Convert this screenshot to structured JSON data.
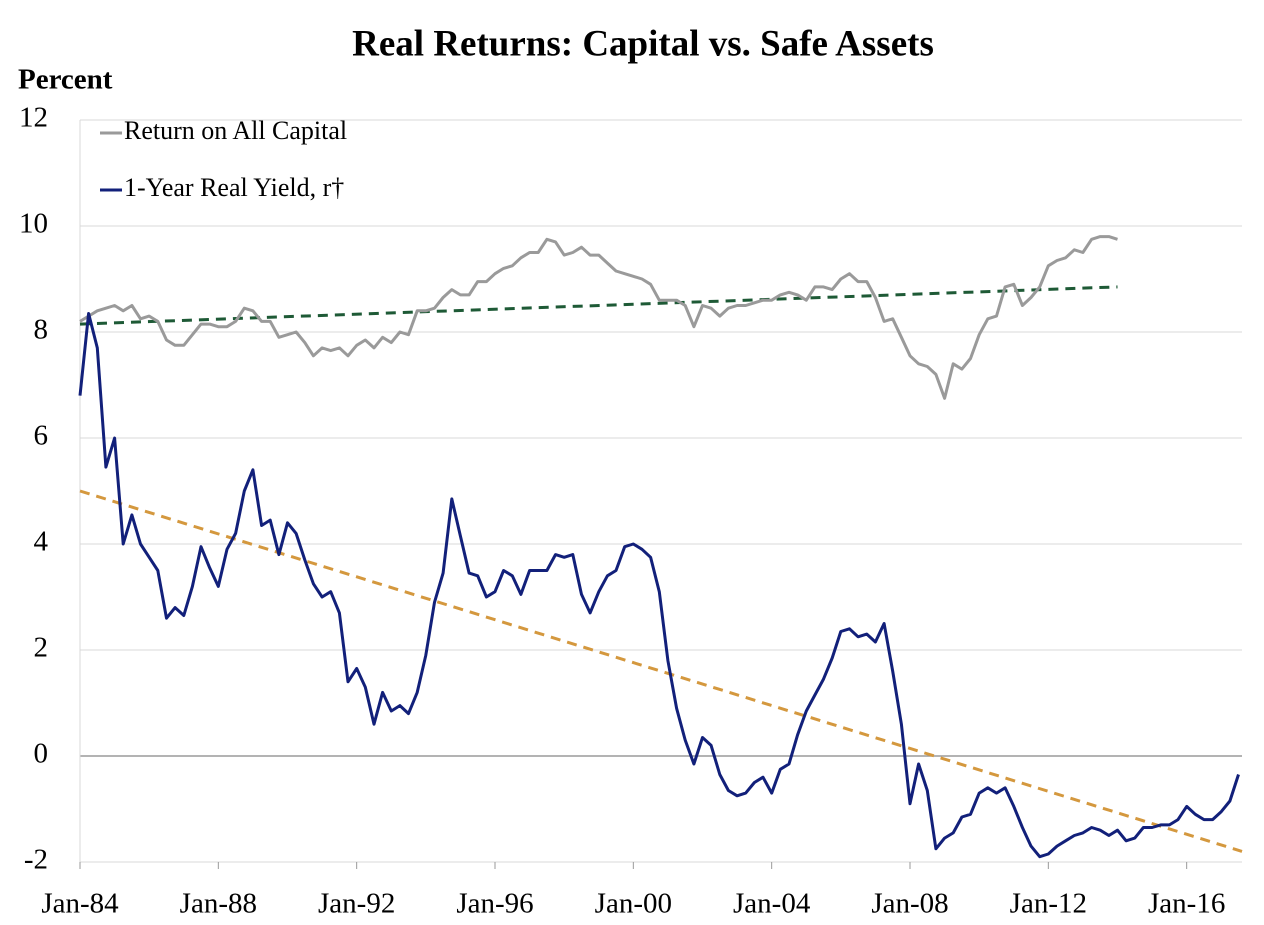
{
  "chart_data": {
    "type": "line",
    "title": "Real Returns: Capital vs. Safe Assets",
    "y_label": "Percent",
    "xlim": [
      1984,
      2017.6
    ],
    "xticks": [
      {
        "value": 1984,
        "label": "Jan-84"
      },
      {
        "value": 1988,
        "label": "Jan-88"
      },
      {
        "value": 1992,
        "label": "Jan-92"
      },
      {
        "value": 1996,
        "label": "Jan-96"
      },
      {
        "value": 2000,
        "label": "Jan-00"
      },
      {
        "value": 2004,
        "label": "Jan-04"
      },
      {
        "value": 2008,
        "label": "Jan-08"
      },
      {
        "value": 2012,
        "label": "Jan-12"
      },
      {
        "value": 2016,
        "label": "Jan-16"
      }
    ],
    "ylim": [
      -2,
      12
    ],
    "yticks": [
      -2,
      0,
      2,
      4,
      6,
      8,
      10,
      12
    ],
    "grid": true,
    "legend": "upper left",
    "series": [
      {
        "name": "Return on All Capital",
        "color": "#9a9a9a",
        "x": [
          1984,
          1984.25,
          1984.5,
          1984.75,
          1985,
          1985.25,
          1985.5,
          1985.75,
          1986,
          1986.25,
          1986.5,
          1986.75,
          1987,
          1987.25,
          1987.5,
          1987.75,
          1988,
          1988.25,
          1988.5,
          1988.75,
          1989,
          1989.25,
          1989.5,
          1989.75,
          1990,
          1990.25,
          1990.5,
          1990.75,
          1991,
          1991.25,
          1991.5,
          1991.75,
          1992,
          1992.25,
          1992.5,
          1992.75,
          1993,
          1993.25,
          1993.5,
          1993.75,
          1994,
          1994.25,
          1994.5,
          1994.75,
          1995,
          1995.25,
          1995.5,
          1995.75,
          1996,
          1996.25,
          1996.5,
          1996.75,
          1997,
          1997.25,
          1997.5,
          1997.75,
          1998,
          1998.25,
          1998.5,
          1998.75,
          1999,
          1999.25,
          1999.5,
          1999.75,
          2000,
          2000.25,
          2000.5,
          2000.75,
          2001,
          2001.25,
          2001.5,
          2001.75,
          2002,
          2002.25,
          2002.5,
          2002.75,
          2003,
          2003.25,
          2003.5,
          2003.75,
          2004,
          2004.25,
          2004.5,
          2004.75,
          2005,
          2005.25,
          2005.5,
          2005.75,
          2006,
          2006.25,
          2006.5,
          2006.75,
          2007,
          2007.25,
          2007.5,
          2007.75,
          2008,
          2008.25,
          2008.5,
          2008.75,
          2009,
          2009.25,
          2009.5,
          2009.75,
          2010,
          2010.25,
          2010.5,
          2010.75,
          2011,
          2011.25,
          2011.5,
          2011.75,
          2012,
          2012.25,
          2012.5,
          2012.75,
          2013,
          2013.25,
          2013.5,
          2013.75,
          2014
        ],
        "values": [
          8.2,
          8.3,
          8.4,
          8.45,
          8.5,
          8.4,
          8.5,
          8.25,
          8.3,
          8.2,
          7.85,
          7.75,
          7.75,
          7.95,
          8.15,
          8.15,
          8.1,
          8.1,
          8.2,
          8.45,
          8.4,
          8.2,
          8.2,
          7.9,
          7.95,
          8.0,
          7.8,
          7.55,
          7.7,
          7.65,
          7.7,
          7.55,
          7.75,
          7.85,
          7.7,
          7.9,
          7.8,
          8.0,
          7.95,
          8.4,
          8.4,
          8.45,
          8.65,
          8.8,
          8.7,
          8.7,
          8.95,
          8.95,
          9.1,
          9.2,
          9.25,
          9.4,
          9.5,
          9.5,
          9.75,
          9.7,
          9.45,
          9.5,
          9.6,
          9.45,
          9.45,
          9.3,
          9.15,
          9.1,
          9.05,
          9.0,
          8.9,
          8.6,
          8.6,
          8.6,
          8.5,
          8.1,
          8.5,
          8.45,
          8.3,
          8.45,
          8.5,
          8.5,
          8.55,
          8.6,
          8.6,
          8.7,
          8.75,
          8.7,
          8.6,
          8.85,
          8.85,
          8.8,
          9.0,
          9.1,
          8.95,
          8.95,
          8.65,
          8.2,
          8.25,
          7.9,
          7.55,
          7.4,
          7.35,
          7.2,
          6.75,
          7.4,
          7.3,
          7.5,
          7.95,
          8.25,
          8.3,
          8.85,
          8.9,
          8.5,
          8.65,
          8.85,
          9.25,
          9.35,
          9.4,
          9.55,
          9.5,
          9.75,
          9.8,
          9.8,
          9.75
        ]
      },
      {
        "name": "1-Year Real Yield, r†",
        "color": "#12207a",
        "x": [
          1984,
          1984.25,
          1984.5,
          1984.75,
          1985,
          1985.25,
          1985.5,
          1985.75,
          1986,
          1986.25,
          1986.5,
          1986.75,
          1987,
          1987.25,
          1987.5,
          1987.75,
          1988,
          1988.25,
          1988.5,
          1988.75,
          1989,
          1989.25,
          1989.5,
          1989.75,
          1990,
          1990.25,
          1990.5,
          1990.75,
          1991,
          1991.25,
          1991.5,
          1991.75,
          1992,
          1992.25,
          1992.5,
          1992.75,
          1993,
          1993.25,
          1993.5,
          1993.75,
          1994,
          1994.25,
          1994.5,
          1994.75,
          1995,
          1995.25,
          1995.5,
          1995.75,
          1996,
          1996.25,
          1996.5,
          1996.75,
          1997,
          1997.25,
          1997.5,
          1997.75,
          1998,
          1998.25,
          1998.5,
          1998.75,
          1999,
          1999.25,
          1999.5,
          1999.75,
          2000,
          2000.25,
          2000.5,
          2000.75,
          2001,
          2001.25,
          2001.5,
          2001.75,
          2002,
          2002.25,
          2002.5,
          2002.75,
          2003,
          2003.25,
          2003.5,
          2003.75,
          2004,
          2004.25,
          2004.5,
          2004.75,
          2005,
          2005.25,
          2005.5,
          2005.75,
          2006,
          2006.25,
          2006.5,
          2006.75,
          2007,
          2007.25,
          2007.5,
          2007.75,
          2008,
          2008.25,
          2008.5,
          2008.75,
          2009,
          2009.25,
          2009.5,
          2009.75,
          2010,
          2010.25,
          2010.5,
          2010.75,
          2011,
          2011.25,
          2011.5,
          2011.75,
          2012,
          2012.25,
          2012.5,
          2012.75,
          2013,
          2013.25,
          2013.5,
          2013.75,
          2014,
          2014.25,
          2014.5,
          2014.75,
          2015,
          2015.25,
          2015.5,
          2015.75,
          2016,
          2016.25,
          2016.5,
          2016.75,
          2017,
          2017.25,
          2017.5
        ],
        "values": [
          6.8,
          8.35,
          7.7,
          5.45,
          6.0,
          4.0,
          4.55,
          4.0,
          3.75,
          3.5,
          2.6,
          2.8,
          2.65,
          3.2,
          3.95,
          3.55,
          3.2,
          3.9,
          4.2,
          5.0,
          5.4,
          4.35,
          4.45,
          3.8,
          4.4,
          4.2,
          3.7,
          3.25,
          3.0,
          3.1,
          2.7,
          1.4,
          1.65,
          1.3,
          0.6,
          1.2,
          0.85,
          0.95,
          0.8,
          1.2,
          1.9,
          2.9,
          3.45,
          4.85,
          4.15,
          3.45,
          3.4,
          3.0,
          3.1,
          3.5,
          3.4,
          3.05,
          3.5,
          3.5,
          3.5,
          3.8,
          3.75,
          3.8,
          3.05,
          2.7,
          3.1,
          3.4,
          3.5,
          3.95,
          4.0,
          3.9,
          3.75,
          3.1,
          1.8,
          0.9,
          0.3,
          -0.15,
          0.35,
          0.2,
          -0.35,
          -0.65,
          -0.75,
          -0.7,
          -0.5,
          -0.4,
          -0.7,
          -0.25,
          -0.15,
          0.4,
          0.85,
          1.15,
          1.45,
          1.85,
          2.35,
          2.4,
          2.25,
          2.3,
          2.15,
          2.5,
          1.6,
          0.6,
          -0.9,
          -0.15,
          -0.65,
          -1.75,
          -1.55,
          -1.45,
          -1.15,
          -1.1,
          -0.7,
          -0.6,
          -0.7,
          -0.6,
          -0.95,
          -1.35,
          -1.7,
          -1.9,
          -1.85,
          -1.7,
          -1.6,
          -1.5,
          -1.45,
          -1.35,
          -1.4,
          -1.5,
          -1.4,
          -1.6,
          -1.55,
          -1.35,
          -1.35,
          -1.3,
          -1.3,
          -1.2,
          -0.95,
          -1.1,
          -1.2,
          -1.2,
          -1.05,
          -0.85,
          -0.35
        ]
      }
    ],
    "trend_lines": [
      {
        "color": "#1e5a36",
        "x": [
          1984,
          2014
        ],
        "values": [
          8.15,
          8.85
        ]
      },
      {
        "color": "#d4983e",
        "x": [
          1984,
          2017.6
        ],
        "values": [
          5.0,
          -1.8
        ]
      }
    ]
  }
}
